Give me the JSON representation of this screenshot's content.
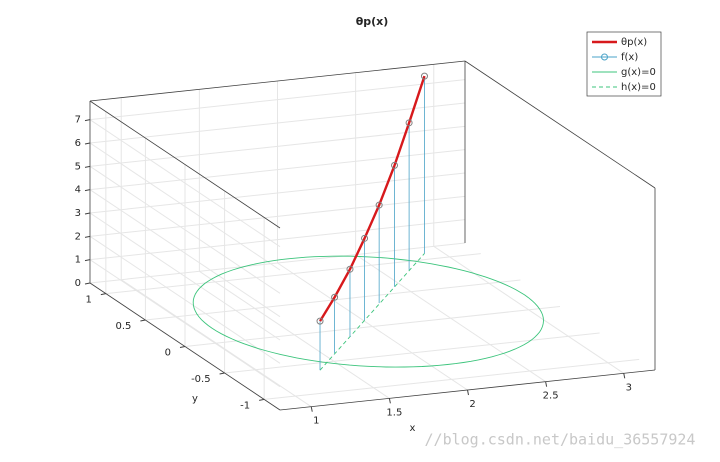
{
  "chart_data": {
    "type": "line3d",
    "title": "θp(x)",
    "xlabel": "x",
    "ylabel": "y",
    "xlim": [
      0.8,
      3.2
    ],
    "ylim": [
      -1.2,
      1.2
    ],
    "zlim": [
      0,
      7.8
    ],
    "xticks": [
      1,
      1.5,
      2,
      2.5,
      3
    ],
    "yticks": [
      -1,
      -0.5,
      0,
      0.5,
      1
    ],
    "zticks": [
      0,
      1,
      2,
      3,
      4,
      5,
      6,
      7
    ],
    "grid": true,
    "legend": "upper right",
    "series": [
      {
        "name": "θp(x)",
        "color": "#d7191c",
        "x": [
          1.35,
          1.57,
          1.79,
          2.01,
          2.23,
          2.45,
          2.67,
          2.89
        ],
        "y": [
          -0.62,
          -0.37,
          -0.13,
          0.12,
          0.37,
          0.61,
          0.86,
          1.1
        ],
        "z": [
          2.1,
          2.4,
          2.9,
          3.5,
          4.2,
          5.2,
          6.3,
          7.6
        ]
      },
      {
        "name": "f(x)",
        "color": "#4aa3c8",
        "marker_color": "#808080",
        "x": [
          1.35,
          1.57,
          1.79,
          2.01,
          2.23,
          2.45,
          2.67,
          2.89
        ],
        "y": [
          -0.62,
          -0.37,
          -0.13,
          0.12,
          0.37,
          0.61,
          0.86,
          1.1
        ],
        "z": [
          2.1,
          2.4,
          2.9,
          3.5,
          4.2,
          5.2,
          6.3,
          7.6
        ]
      },
      {
        "name": "g(x)=0",
        "color": "#3cc47c",
        "center": [
          2.1,
          0.25
        ],
        "radius": 1
      },
      {
        "name": "h(x)=0",
        "color": "#3cc47c",
        "x": [
          1.35,
          2.89
        ],
        "y": [
          -0.62,
          1.1
        ]
      }
    ],
    "annotation": "//blog.csdn.net/baidu_36557924"
  }
}
